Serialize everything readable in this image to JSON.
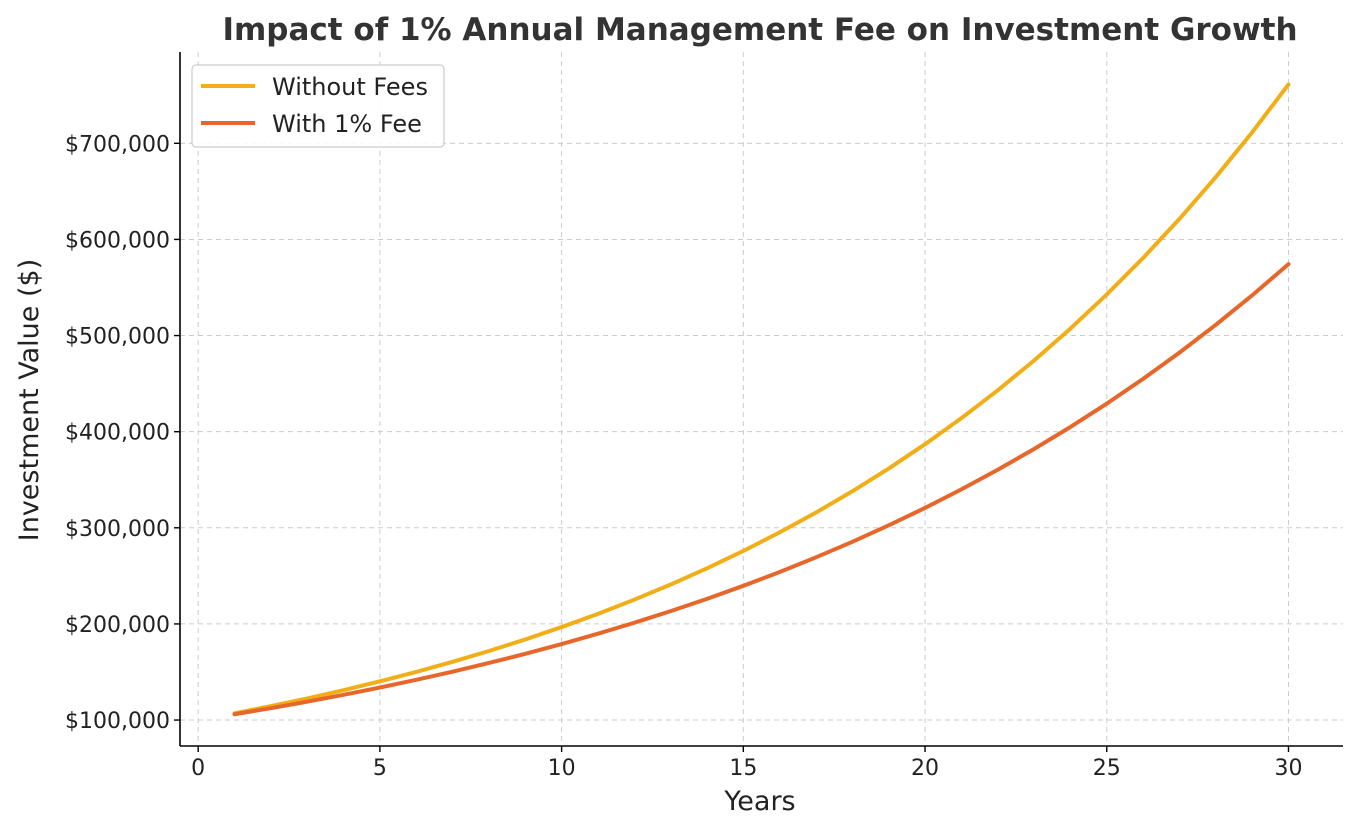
{
  "chart_data": {
    "type": "line",
    "title": "Impact of 1% Annual Management Fee on Investment Growth",
    "xlabel": "Years",
    "ylabel": "Investment Value ($)",
    "xlim": [
      -0.5,
      31.5
    ],
    "ylim": [
      73000,
      795000
    ],
    "x_ticks": [
      0,
      5,
      10,
      15,
      20,
      25,
      30
    ],
    "x_tick_labels": [
      "0",
      "5",
      "10",
      "15",
      "20",
      "25",
      "30"
    ],
    "y_ticks": [
      100000,
      200000,
      300000,
      400000,
      500000,
      600000,
      700000
    ],
    "y_tick_labels": [
      "$100,000",
      "$200,000",
      "$300,000",
      "$400,000",
      "$500,000",
      "$600,000",
      "$700,000"
    ],
    "grid": true,
    "legend_position": "top-left",
    "x": [
      1,
      2,
      3,
      4,
      5,
      6,
      7,
      8,
      9,
      10,
      11,
      12,
      13,
      14,
      15,
      16,
      17,
      18,
      19,
      20,
      21,
      22,
      23,
      24,
      25,
      26,
      27,
      28,
      29,
      30
    ],
    "series": [
      {
        "name": "Without Fees",
        "color": "#f2ae17",
        "values": [
          107000,
          114490,
          122504,
          131080,
          140255,
          150073,
          160578,
          171819,
          183846,
          196715,
          210485,
          225219,
          240985,
          257853,
          275903,
          295216,
          315882,
          337993,
          361653,
          386968,
          414056,
          443040,
          474053,
          507237,
          542743,
          580735,
          621387,
          664884,
          711426,
          761226
        ]
      },
      {
        "name": "With 1% Fee",
        "color": "#e7672a",
        "values": [
          106000,
          112360,
          119102,
          126248,
          133823,
          141852,
          150363,
          159385,
          168948,
          179085,
          189830,
          201220,
          213293,
          226090,
          239656,
          254035,
          269277,
          285434,
          302560,
          320714,
          339956,
          360354,
          381975,
          404893,
          429187,
          454938,
          482235,
          511169,
          541839,
          574349
        ]
      }
    ]
  },
  "colors": {
    "axis": "#000000",
    "grid": "#cccccc",
    "title": "#333333"
  }
}
